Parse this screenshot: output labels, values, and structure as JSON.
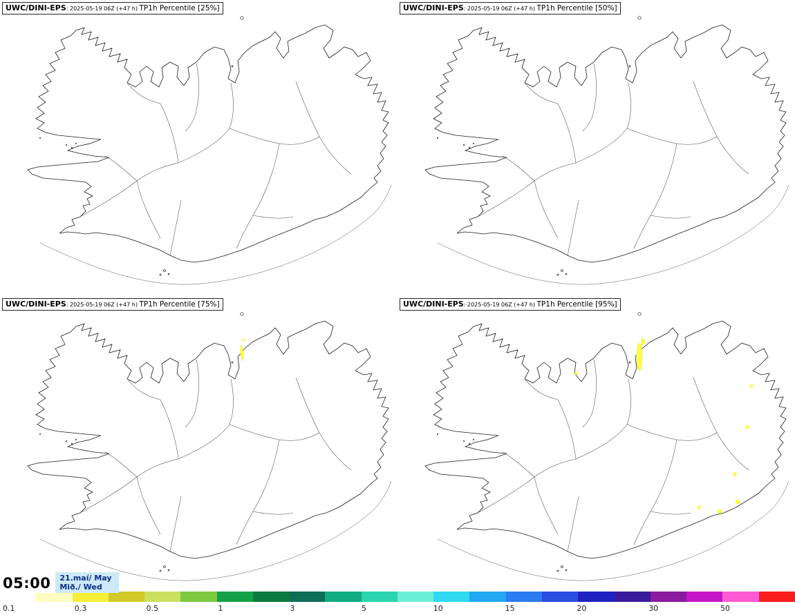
{
  "panels": [
    {
      "model": "UWC/DINI-EPS",
      "run": ": 2025-05-19 06Z (+47 h) ",
      "param": "TP1h Percentile [25%]"
    },
    {
      "model": "UWC/DINI-EPS",
      "run": ": 2025-05-19 06Z (+47 h) ",
      "param": "TP1h Percentile [50%]"
    },
    {
      "model": "UWC/DINI-EPS",
      "run": ": 2025-05-19 06Z (+47 h) ",
      "param": "TP1h Percentile [75%]"
    },
    {
      "model": "UWC/DINI-EPS",
      "run": ": 2025-05-19 06Z (+47 h) ",
      "param": "TP1h Percentile [95%]"
    }
  ],
  "timebox": {
    "time": "05:00",
    "date": "21.maí/ May",
    "day": "Mið./ Wed"
  },
  "colorbar": {
    "labels": [
      "0.1",
      "0.3",
      "0.5",
      "1",
      "3",
      "5",
      "10",
      "15",
      "20",
      "30",
      "50"
    ],
    "colors": [
      "#ffffff",
      "#fffec0",
      "#f6ef3a",
      "#d2ca28",
      "#cce060",
      "#7cc940",
      "#14a04a",
      "#0b7a3e",
      "#0c6e56",
      "#12ad84",
      "#2ad4ae",
      "#6cefd8",
      "#2fd9f2",
      "#21a8f0",
      "#2b7cf0",
      "#2a4de0",
      "#1f22c0",
      "#39199c",
      "#8a1a9e",
      "#c516c5",
      "#fb5ad2",
      "#fb1c1c"
    ],
    "precip_highlight_color": "#ffff3d",
    "timebox_bg": "#cde9f7",
    "timebox_text": "#0d2f86"
  }
}
